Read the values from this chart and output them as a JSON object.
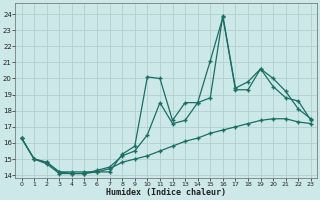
{
  "xlabel": "Humidex (Indice chaleur)",
  "xlim": [
    -0.5,
    23.5
  ],
  "ylim": [
    13.8,
    24.7
  ],
  "yticks": [
    14,
    15,
    16,
    17,
    18,
    19,
    20,
    21,
    22,
    23,
    24
  ],
  "xticks": [
    0,
    1,
    2,
    3,
    4,
    5,
    6,
    7,
    8,
    9,
    10,
    11,
    12,
    13,
    14,
    15,
    16,
    17,
    18,
    19,
    20,
    21,
    22,
    23
  ],
  "background_color": "#cde8e8",
  "grid_color": "#b0d0d0",
  "line_color": "#1a6e64",
  "line1_x": [
    0,
    1,
    2,
    3,
    4,
    5,
    6,
    7,
    8,
    9,
    10,
    11,
    12,
    13,
    14,
    15,
    16,
    17,
    18,
    19,
    20,
    21,
    22,
    23
  ],
  "line1_y": [
    16.3,
    15.0,
    14.8,
    14.2,
    14.2,
    14.2,
    14.2,
    14.2,
    15.3,
    15.8,
    20.1,
    20.0,
    17.4,
    18.5,
    18.5,
    21.1,
    23.8,
    19.3,
    19.3,
    20.6,
    20.0,
    19.2,
    18.1,
    17.5
  ],
  "line2_x": [
    0,
    1,
    2,
    3,
    4,
    5,
    6,
    7,
    8,
    9,
    10,
    11,
    12,
    13,
    14,
    15,
    16,
    17,
    18,
    19,
    20,
    21,
    22,
    23
  ],
  "line2_y": [
    16.3,
    15.0,
    14.8,
    14.2,
    14.1,
    14.1,
    14.3,
    14.5,
    15.2,
    15.5,
    16.5,
    18.5,
    17.2,
    17.4,
    18.5,
    18.8,
    23.9,
    19.4,
    19.8,
    20.6,
    19.5,
    18.8,
    18.6,
    17.4
  ],
  "line3_x": [
    0,
    1,
    2,
    3,
    4,
    5,
    6,
    7,
    8,
    9,
    10,
    11,
    12,
    13,
    14,
    15,
    16,
    17,
    18,
    19,
    20,
    21,
    22,
    23
  ],
  "line3_y": [
    16.3,
    15.0,
    14.7,
    14.1,
    14.1,
    14.1,
    14.2,
    14.4,
    14.8,
    15.0,
    15.2,
    15.5,
    15.8,
    16.1,
    16.3,
    16.6,
    16.8,
    17.0,
    17.2,
    17.4,
    17.5,
    17.5,
    17.3,
    17.2
  ]
}
